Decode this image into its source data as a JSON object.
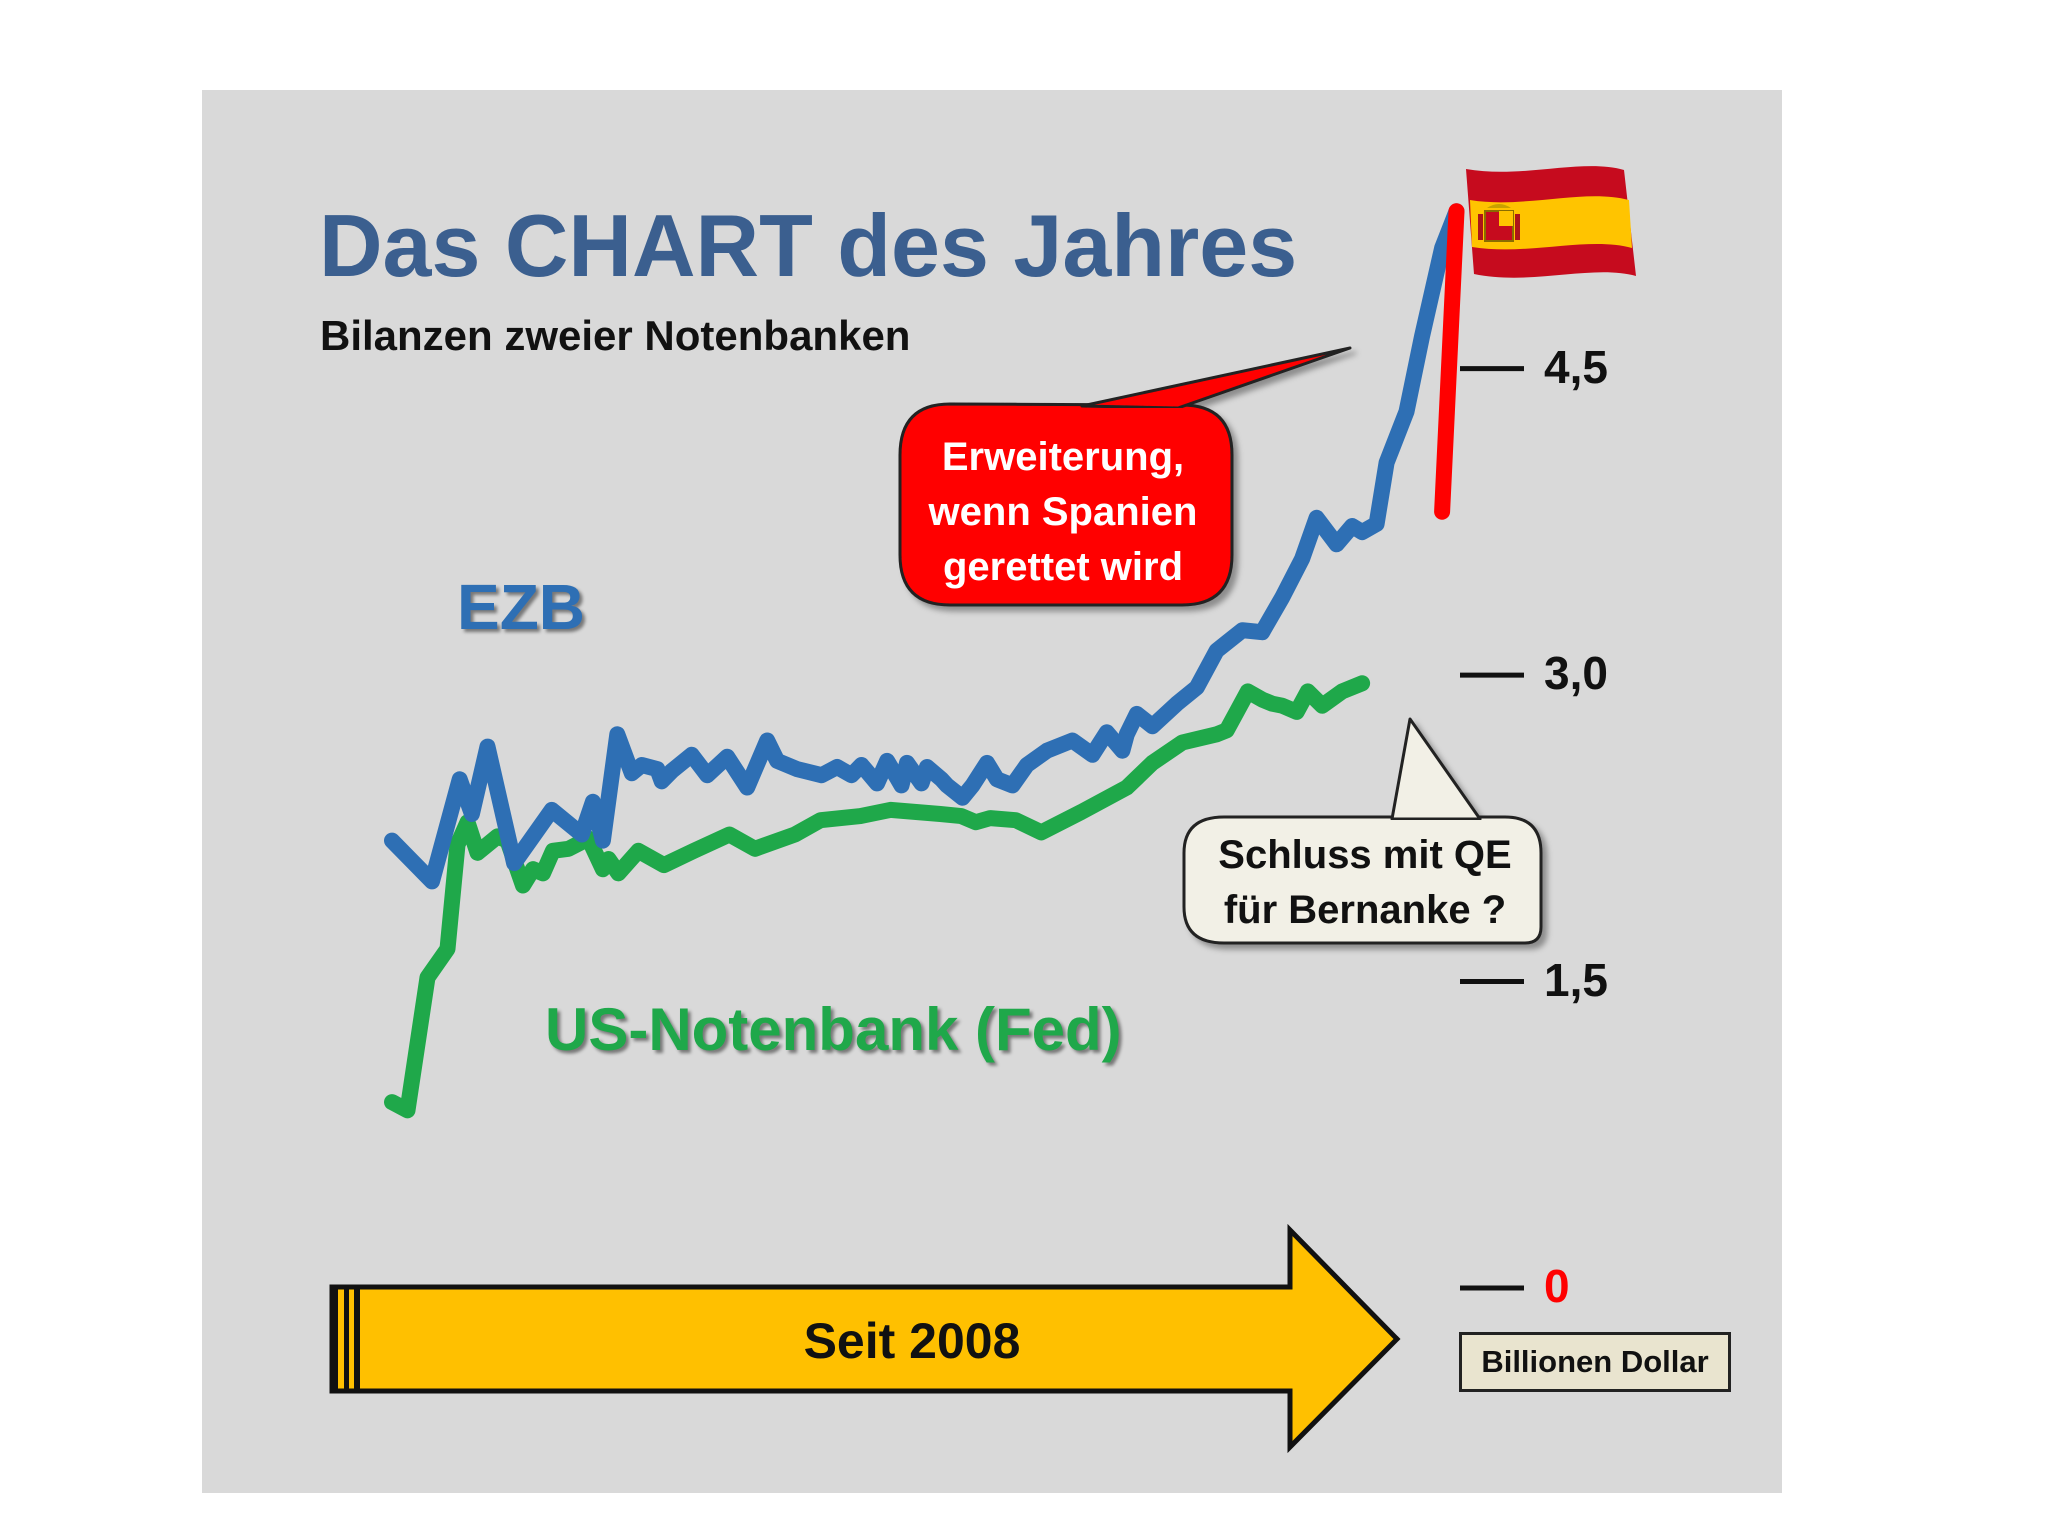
{
  "title": "Das CHART des Jahres",
  "subtitle": "Bilanzen zweier Notenbanken",
  "colors": {
    "background": "#d9d9d9",
    "title": "#3b5f8f",
    "ezb": "#2e6fb4",
    "fed": "#1fa84a",
    "projection": "#ff0000",
    "arrow": "#ffc000",
    "zero_label": "#ff0000"
  },
  "callouts": {
    "red": [
      "Erweiterung,",
      "wenn Spanien",
      "gerettet wird"
    ],
    "white": [
      "Schluss mit QE",
      "für Bernanke ?"
    ]
  },
  "timeline_arrow": {
    "label": "Seit 2008"
  },
  "unit_label": "Billionen Dollar",
  "icons": {
    "flag": "spain-flag-icon"
  },
  "chart_data": {
    "type": "line",
    "title": "Das CHART des Jahres",
    "subtitle": "Bilanzen zweier Notenbanken",
    "ylabel": "Billionen Dollar",
    "xlabel": "Seit 2008",
    "y_axis_side": "right",
    "ylim": [
      0,
      5.3
    ],
    "yticks": [
      {
        "value": 0,
        "label": "0"
      },
      {
        "value": 1.5,
        "label": "1,5"
      },
      {
        "value": 3.0,
        "label": "3,0"
      },
      {
        "value": 4.5,
        "label": "4,5"
      }
    ],
    "xlim": [
      0,
      100
    ],
    "series": [
      {
        "name": "EZB",
        "x": [
          0,
          3.6,
          6.1,
          7.2,
          8.6,
          11,
          14.4,
          17.1,
          18.1,
          19,
          20.3,
          21.6,
          22.5,
          23.9,
          24.3,
          25.2,
          27,
          28.4,
          30.2,
          32,
          33.8,
          34.7,
          36.5,
          38.7,
          40.1,
          41.4,
          42.3,
          43.7,
          44.6,
          45.9,
          46.4,
          47.7,
          48.2,
          49.5,
          50,
          51.4,
          52.3,
          53.6,
          54.5,
          55.9,
          57.2,
          59,
          61.3,
          63.1,
          64.4,
          65.8,
          66.2,
          67.1,
          68.5,
          70.7,
          72.5,
          74.3,
          76.6,
          78.4,
          80.2,
          82,
          83.3,
          85.1,
          86.5,
          87.4,
          88.7,
          89.6,
          91.4,
          92.8,
          94.6,
          95.9
        ],
        "values": [
          2.19,
          1.99,
          2.49,
          2.32,
          2.65,
          2.08,
          2.34,
          2.22,
          2.38,
          2.19,
          2.71,
          2.52,
          2.56,
          2.54,
          2.48,
          2.53,
          2.61,
          2.51,
          2.6,
          2.45,
          2.68,
          2.58,
          2.54,
          2.51,
          2.55,
          2.51,
          2.56,
          2.47,
          2.58,
          2.46,
          2.57,
          2.47,
          2.55,
          2.49,
          2.46,
          2.4,
          2.46,
          2.57,
          2.49,
          2.46,
          2.56,
          2.63,
          2.68,
          2.61,
          2.72,
          2.63,
          2.71,
          2.81,
          2.75,
          2.86,
          2.94,
          3.12,
          3.22,
          3.21,
          3.38,
          3.57,
          3.77,
          3.64,
          3.73,
          3.7,
          3.74,
          4.04,
          4.29,
          4.66,
          5.09,
          5.27
        ]
      },
      {
        "name": "US-Notenbank (Fed)",
        "x": [
          0,
          1.4,
          3.2,
          5,
          5.9,
          6.8,
          7.7,
          9.5,
          10.4,
          11.8,
          12.7,
          13.6,
          14.5,
          15.9,
          17.7,
          19,
          19.5,
          20.4,
          22.2,
          24.5,
          27.2,
          30.4,
          32.7,
          36.3,
          38.6,
          42.2,
          44.9,
          49.4,
          51.3,
          52.6,
          53.9,
          56.2,
          58.5,
          62.1,
          66.2,
          68.5,
          71.2,
          74.3,
          75.2,
          76.1,
          77.1,
          78.4,
          79.3,
          80.2,
          81.5,
          82.5,
          83.8,
          85.6,
          87.4
        ],
        "values": [
          0.91,
          0.87,
          1.52,
          1.66,
          2.17,
          2.28,
          2.13,
          2.21,
          2.19,
          1.97,
          2.05,
          2.03,
          2.14,
          2.15,
          2.2,
          2.05,
          2.1,
          2.03,
          2.14,
          2.07,
          2.14,
          2.22,
          2.15,
          2.22,
          2.29,
          2.31,
          2.34,
          2.32,
          2.31,
          2.28,
          2.3,
          2.29,
          2.23,
          2.33,
          2.45,
          2.57,
          2.67,
          2.71,
          2.73,
          2.82,
          2.92,
          2.88,
          2.86,
          2.85,
          2.82,
          2.92,
          2.85,
          2.92,
          2.96
        ]
      }
    ],
    "projection": {
      "series": "EZB",
      "x": [
        94.6,
        95.9
      ],
      "values": [
        3.8,
        5.27
      ]
    },
    "annotations": [
      {
        "text": "EZB",
        "series": "EZB"
      },
      {
        "text": "US-Notenbank (Fed)",
        "series": "US-Notenbank (Fed)"
      },
      {
        "text": "Erweiterung, wenn Spanien gerettet wird",
        "style": "red-callout"
      },
      {
        "text": "Schluss mit QE für Bernanke ?",
        "style": "white-callout"
      }
    ],
    "grid": false,
    "legend": "none"
  }
}
